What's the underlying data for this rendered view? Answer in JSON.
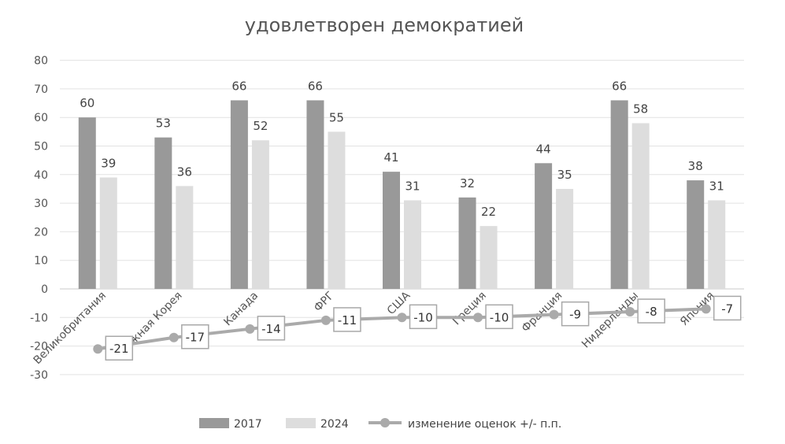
{
  "chart_data": {
    "type": "bar",
    "title": "удовлетворен демократией",
    "categories": [
      "Великобритания",
      "Южная Корея",
      "Канада",
      "ФРГ",
      "США",
      "Греция",
      "Франция",
      "Нидерланды",
      "Япония"
    ],
    "series": [
      {
        "name": "2017",
        "type": "bar",
        "color": "#999999",
        "values": [
          60,
          53,
          66,
          66,
          41,
          32,
          44,
          66,
          38
        ]
      },
      {
        "name": "2024",
        "type": "bar",
        "color": "#dddddd",
        "values": [
          39,
          36,
          52,
          55,
          31,
          22,
          35,
          58,
          31
        ]
      },
      {
        "name": "изменение оценок +/- п.п.",
        "type": "line",
        "color": "#aaaaaa",
        "values": [
          -21,
          -17,
          -14,
          -11,
          -10,
          -10,
          -9,
          -8,
          -7
        ]
      }
    ],
    "yticks": [
      "80",
      "70",
      "60",
      "50",
      "40",
      "30",
      "20",
      "10",
      "0",
      "-10",
      "-20",
      "-30"
    ],
    "ylim": [
      -30,
      80
    ],
    "grid": true,
    "legend": "bottom"
  }
}
